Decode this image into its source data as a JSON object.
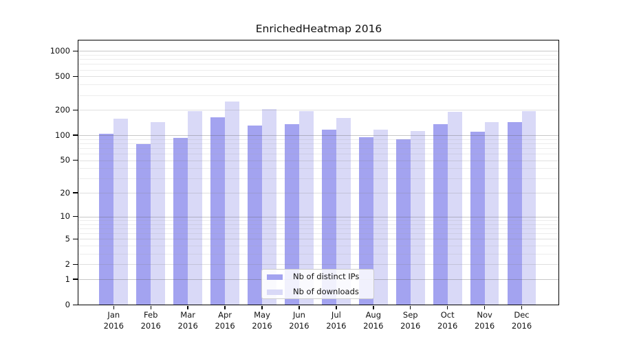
{
  "figure": {
    "background_color": "#ffffff",
    "axis_color": "#000000"
  },
  "chart_data": {
    "type": "bar",
    "title": "EnrichedHeatmap 2016",
    "categories": [
      "Jan 2016",
      "Feb 2016",
      "Mar 2016",
      "Apr 2016",
      "May 2016",
      "Jun 2016",
      "Jul 2016",
      "Aug 2016",
      "Sep 2016",
      "Oct 2016",
      "Nov 2016",
      "Dec 2016"
    ],
    "series": [
      {
        "name": "Nb of distinct IPs",
        "color": "#a3a3f0",
        "values": [
          103,
          78,
          92,
          163,
          131,
          135,
          116,
          94,
          89,
          136,
          110,
          142
        ]
      },
      {
        "name": "Nb of downloads",
        "color": "#d9d9f7",
        "values": [
          158,
          142,
          193,
          253,
          206,
          192,
          159,
          116,
          112,
          190,
          144,
          192
        ]
      }
    ],
    "xlabel": "",
    "ylabel": "",
    "y_scale": "log(1+v)",
    "y_ticks": [
      0,
      1,
      2,
      5,
      10,
      20,
      50,
      100,
      200,
      500,
      1000
    ],
    "ylim": [
      0,
      1340
    ],
    "grid": "horizontal major and minor gridlines drawn over bars",
    "grid_colors": {
      "decade": "rgba(90,90,90,0.34)",
      "labeled": "rgba(130,130,130,0.26)",
      "minor": "rgba(160,160,160,0.20)"
    },
    "legend_position": "lower center inside plot",
    "legend_entries": [
      "Nb of distinct IPs",
      "Nb of downloads"
    ]
  }
}
